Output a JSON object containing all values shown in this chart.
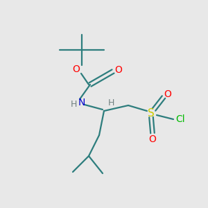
{
  "bg_color": "#e8e8e8",
  "bond_color": "#2d7d7d",
  "atom_colors": {
    "O": "#ff0000",
    "N": "#0000cc",
    "S": "#cccc00",
    "Cl": "#00bb00",
    "H": "#708080"
  },
  "figsize": [
    3.0,
    3.0
  ],
  "dpi": 100
}
